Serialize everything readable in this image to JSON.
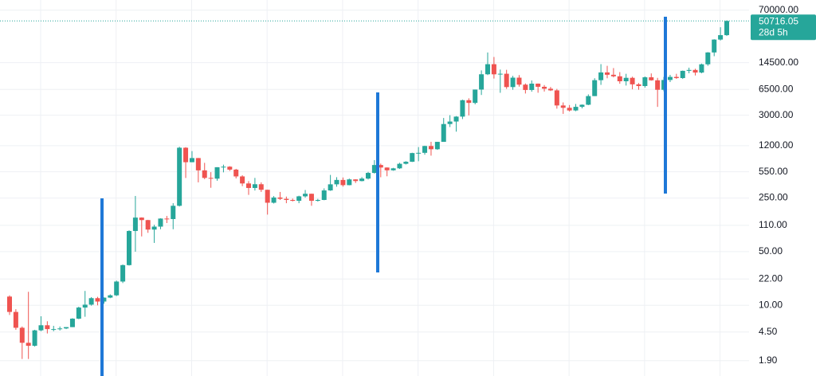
{
  "chart_data": {
    "type": "candlestick",
    "log_scale": true,
    "grid": true,
    "up_color": "#26a69a",
    "down_color": "#ef5350",
    "last_price_color": "#26a69a",
    "ylim": [
      1.2,
      95000
    ],
    "yticks": [
      {
        "value": 70000,
        "label": "70000.00"
      },
      {
        "value": 14500,
        "label": "14500.00"
      },
      {
        "value": 6500,
        "label": "6500.00"
      },
      {
        "value": 3000,
        "label": "3000.00"
      },
      {
        "value": 1200,
        "label": "1200.00"
      },
      {
        "value": 550,
        "label": "550.00"
      },
      {
        "value": 250,
        "label": "250.00"
      },
      {
        "value": 110,
        "label": "110.00"
      },
      {
        "value": 50,
        "label": "50.00"
      },
      {
        "value": 22,
        "label": "22.00"
      },
      {
        "value": 10,
        "label": "10.00"
      },
      {
        "value": 4.5,
        "label": "4.50"
      },
      {
        "value": 1.9,
        "label": "1.90"
      }
    ],
    "last_price": 50716.05,
    "countdown": "28d 5h",
    "open": [
      13.0,
      8.2,
      5.1,
      3.25,
      2.97,
      4.72,
      5.5,
      4.9,
      4.9,
      5.0,
      5.2,
      6.7,
      9.35,
      10.2,
      12.4,
      11.2,
      12.6,
      13.5,
      20.4,
      33.4,
      93,
      139,
      129,
      97,
      106,
      135,
      133,
      198,
      1130,
      732,
      829,
      573,
      457,
      447,
      630,
      640,
      586,
      478,
      387,
      338,
      378,
      320,
      217,
      254,
      244,
      236,
      230,
      263,
      284,
      230,
      236,
      314,
      377,
      430,
      368,
      437,
      416,
      448,
      531,
      673,
      624,
      574,
      609,
      698,
      742,
      963,
      970,
      1190,
      1080,
      1348,
      2300,
      2480,
      2875,
      4703,
      4338,
      6468,
      10233,
      13850,
      10221,
      10397,
      6973,
      9246,
      7500,
      6391,
      7729,
      7033,
      6635,
      6317,
      4017,
      3742,
      3457,
      3854,
      4105,
      5320,
      8574,
      10817,
      10085,
      9630,
      8299,
      9199,
      7569,
      7193,
      9350,
      8544,
      6424,
      8624,
      9455,
      9137,
      11351,
      11655,
      10779,
      13805,
      19700,
      28990,
      33114
    ],
    "high": [
      13.5,
      8.9,
      5.3,
      15,
      4.8,
      7.2,
      6.2,
      5.4,
      5.3,
      5.2,
      6.8,
      9.6,
      15.4,
      12.8,
      12.9,
      12.7,
      13.9,
      21,
      34,
      95,
      266,
      140,
      130,
      112,
      136,
      146,
      214,
      1163,
      1150,
      1022,
      831,
      718,
      543,
      630,
      680,
      650,
      600,
      495,
      415,
      457,
      400,
      320,
      265,
      300,
      261,
      246,
      268,
      318,
      285,
      244,
      334,
      500,
      467,
      463,
      448,
      439,
      468,
      548,
      780,
      703,
      626,
      618,
      720,
      755,
      973,
      1153,
      1200,
      1350,
      1348,
      2760,
      3000,
      2918,
      4780,
      4980,
      6470,
      11500,
      19666,
      17200,
      11790,
      11700,
      9760,
      9990,
      7770,
      8500,
      7760,
      7410,
      7000,
      6600,
      4400,
      4070,
      4200,
      4140,
      5600,
      9090,
      13880,
      13200,
      12330,
      10920,
      10380,
      9520,
      7870,
      9580,
      10500,
      9190,
      9460,
      10060,
      10380,
      11440,
      12480,
      12080,
      14100,
      19900,
      29300,
      41950,
      51500
    ],
    "low": [
      7.5,
      4.8,
      2.0,
      2.0,
      2.9,
      4.6,
      4.3,
      4.6,
      4.7,
      4.9,
      5.2,
      6.6,
      7.1,
      9.9,
      10.0,
      10.5,
      12.4,
      13.2,
      19.5,
      33,
      50,
      79,
      88,
      65,
      98,
      118,
      98,
      194,
      456,
      732,
      400,
      440,
      340,
      420,
      540,
      563,
      450,
      357,
      275,
      313,
      300,
      152,
      212,
      236,
      214,
      226,
      214,
      253,
      198,
      225,
      234,
      310,
      351,
      352,
      366,
      393,
      412,
      437,
      521,
      466,
      480,
      567,
      598,
      684,
      737,
      754,
      917,
      891,
      1060,
      1350,
      2100,
      1830,
      2670,
      2980,
      4150,
      5500,
      10000,
      9000,
      5873,
      6600,
      6430,
      7060,
      5750,
      6070,
      5880,
      6100,
      6200,
      3650,
      3120,
      3350,
      3380,
      3680,
      4050,
      5320,
      7450,
      9070,
      9330,
      7710,
      7300,
      6520,
      6430,
      6860,
      8450,
      3850,
      6150,
      8100,
      8920,
      8900,
      10540,
      9880,
      10540,
      13200,
      17600,
      28200,
      32300
    ],
    "close": [
      8.2,
      5.1,
      3.25,
      2.97,
      4.72,
      5.5,
      4.9,
      4.9,
      5.0,
      5.2,
      6.7,
      9.35,
      10.2,
      12.4,
      11.2,
      12.6,
      13.5,
      20.4,
      33.4,
      93,
      139,
      129,
      97,
      106,
      135,
      133,
      198,
      1130,
      732,
      829,
      573,
      457,
      447,
      630,
      640,
      586,
      478,
      387,
      338,
      378,
      320,
      217,
      254,
      244,
      236,
      230,
      263,
      284,
      230,
      236,
      314,
      377,
      430,
      368,
      437,
      416,
      448,
      531,
      673,
      624,
      574,
      609,
      698,
      742,
      963,
      970,
      1190,
      1080,
      1348,
      2300,
      2480,
      2875,
      4703,
      4338,
      6468,
      10233,
      13850,
      10221,
      10397,
      6973,
      9246,
      7500,
      6391,
      7729,
      7033,
      6635,
      6317,
      4017,
      3742,
      3457,
      3854,
      4105,
      5320,
      8574,
      10817,
      10085,
      9630,
      8299,
      9199,
      7569,
      7193,
      9350,
      8544,
      6424,
      8624,
      9455,
      9137,
      11351,
      11655,
      10779,
      13805,
      19700,
      28990,
      33114,
      50716.05
    ]
  }
}
